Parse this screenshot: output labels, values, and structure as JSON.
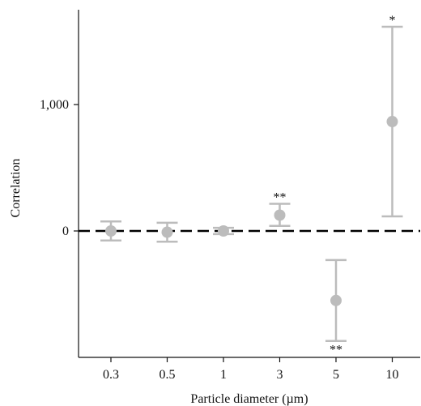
{
  "chart_data": {
    "type": "scatter",
    "title": "",
    "xlabel": "Particle diameter (µm)",
    "ylabel": "Correlation",
    "categories": [
      "0.3",
      "0.5",
      "1",
      "3",
      "5",
      "10"
    ],
    "ylim": [
      -1000,
      1750
    ],
    "yticks": [
      0,
      1000
    ],
    "ytick_labels": [
      "0",
      "1,000"
    ],
    "series": [
      {
        "points": [
          {
            "x": "0.3",
            "y": 0,
            "low": -75,
            "high": 75,
            "sig": ""
          },
          {
            "x": "0.5",
            "y": -10,
            "low": -85,
            "high": 65,
            "sig": ""
          },
          {
            "x": "1",
            "y": 0,
            "low": -25,
            "high": 25,
            "sig": ""
          },
          {
            "x": "3",
            "y": 125,
            "low": 40,
            "high": 215,
            "sig": "**"
          },
          {
            "x": "5",
            "y": -550,
            "low": -870,
            "high": -230,
            "sig": "**"
          },
          {
            "x": "10",
            "y": 865,
            "low": 115,
            "high": 1615,
            "sig": "*"
          }
        ]
      }
    ],
    "reference_line": {
      "y": 0,
      "style": "dashed"
    },
    "grid": false,
    "colors": {
      "marker": "#bcbcbc",
      "errorbar": "#bcbcbc",
      "axis": "#111111",
      "reference": "#000000"
    }
  }
}
